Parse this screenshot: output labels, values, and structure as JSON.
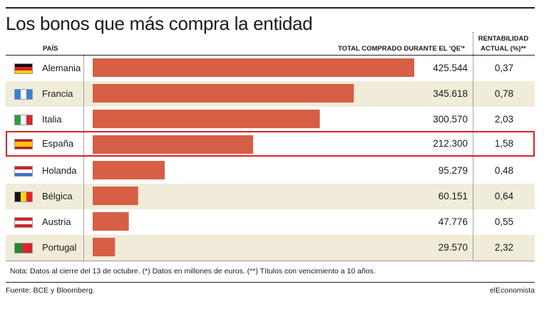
{
  "title": "Los bonos que más compra la entidad",
  "headers": {
    "country": "PAÍS",
    "total": "TOTAL COMPRADO DURANTE EL 'QE'*",
    "rent_line1": "RENTABILIDAD",
    "rent_line2": "ACTUAL (%)**"
  },
  "rows": [
    {
      "country": "Alemania",
      "total": "425.544",
      "rent": "0,37",
      "flag": "germany-flag-icon"
    },
    {
      "country": "Francia",
      "total": "345.618",
      "rent": "0,78",
      "flag": "france-flag-icon"
    },
    {
      "country": "Italia",
      "total": "300.570",
      "rent": "2,03",
      "flag": "italy-flag-icon"
    },
    {
      "country": "España",
      "total": "212.300",
      "rent": "1,58",
      "flag": "spain-flag-icon"
    },
    {
      "country": "Holanda",
      "total": "95.279",
      "rent": "0,48",
      "flag": "netherlands-flag-icon"
    },
    {
      "country": "Bélgica",
      "total": "60.151",
      "rent": "0,64",
      "flag": "belgium-flag-icon"
    },
    {
      "country": "Austria",
      "total": "47.776",
      "rent": "0,55",
      "flag": "austria-flag-icon"
    },
    {
      "country": "Portugal",
      "total": "29.570",
      "rent": "2,32",
      "flag": "portugal-flag-icon"
    }
  ],
  "chart_data": {
    "type": "bar",
    "orientation": "horizontal",
    "categories": [
      "Alemania",
      "Francia",
      "Italia",
      "España",
      "Holanda",
      "Bélgica",
      "Austria",
      "Portugal"
    ],
    "values": [
      425544,
      345618,
      300570,
      212300,
      95279,
      60151,
      47776,
      29570
    ],
    "rentabilidad": [
      0.37,
      0.78,
      2.03,
      1.58,
      0.48,
      0.64,
      0.55,
      2.32
    ],
    "highlighted": "España",
    "bar_color": "#d65f45",
    "highlight_color": "#d42426",
    "alt_row_color": "#f0ecd9"
  },
  "footer": {
    "note": "Nota: Datos al cierre del 13 de octubre. (*) Datos en millones de euros. (**) Títulos con vencimiento a 10 años.",
    "source": "Fuente: BCE y Bloomberg.",
    "brand": "elEconomista"
  }
}
